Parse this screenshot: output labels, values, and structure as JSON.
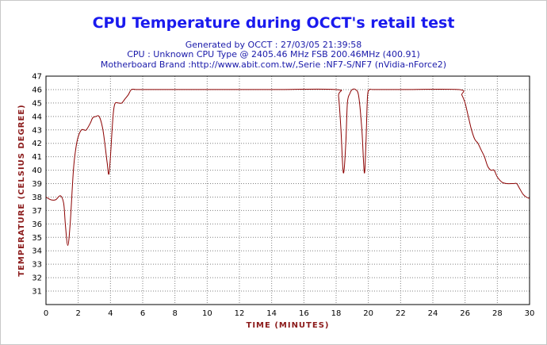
{
  "chart_data": {
    "type": "line",
    "title": "CPU Temperature during OCCT's retail test",
    "subtitles": [
      "Generated by OCCT : 27/03/05 21:39:58",
      "CPU : Unknown CPU Type @ 2405.46 MHz FSB 200.46MHz (400.91)",
      "Motherboard Brand :http://www.abit.com.tw/,Serie :NF7-S/NF7 (nVidia-nForce2)"
    ],
    "xlabel": "TIME (MINUTES)",
    "ylabel": "TEMPERATURE (CELSIUS DEGREE)",
    "xlim": [
      0,
      30
    ],
    "ylim": [
      30,
      47
    ],
    "xticks": [
      0,
      2,
      4,
      6,
      8,
      10,
      12,
      14,
      16,
      18,
      20,
      22,
      24,
      26,
      28,
      30
    ],
    "yticks": [
      31,
      32,
      33,
      34,
      35,
      36,
      37,
      38,
      39,
      40,
      41,
      42,
      43,
      44,
      45,
      46,
      47
    ],
    "grid": true,
    "line_color": "#8b0000",
    "series": [
      {
        "x": [
          0,
          0.3,
          0.6,
          0.9,
          1.1,
          1.2,
          1.35,
          1.5,
          1.7,
          1.85,
          2.0,
          2.2,
          2.35,
          2.5,
          2.75,
          2.9,
          3.1,
          3.3,
          3.5,
          3.65,
          3.8,
          3.9,
          4.0,
          4.1,
          4.2,
          4.3,
          4.5,
          4.7,
          4.9,
          5.1,
          5.3,
          5.6,
          6.0,
          10.0,
          14.0,
          18.0,
          18.15,
          18.3,
          18.45,
          18.6,
          18.7,
          18.85,
          19.0,
          19.2,
          19.4,
          19.6,
          19.75,
          19.85,
          19.95,
          20.1,
          20.3,
          22.0,
          25.6,
          25.8,
          26.0,
          26.2,
          26.4,
          26.6,
          26.8,
          27.0,
          27.2,
          27.4,
          27.6,
          27.8,
          28.0,
          28.3,
          28.6,
          29.0,
          29.2,
          29.4,
          29.6,
          29.8,
          30.0
        ],
        "y": [
          38,
          37.8,
          37.8,
          38.1,
          37.5,
          36,
          34.4,
          36,
          40,
          41.6,
          42.5,
          43,
          43,
          43,
          43.5,
          43.9,
          44,
          44,
          43.2,
          42,
          40.5,
          39.7,
          41,
          43,
          44.5,
          45,
          45,
          45,
          45.3,
          45.6,
          46,
          46,
          46,
          46,
          46,
          46,
          45.5,
          43,
          39.8,
          42,
          45,
          45.7,
          46,
          46,
          45.5,
          43,
          39.8,
          42,
          45.5,
          46,
          46,
          46,
          46,
          45.6,
          45,
          44,
          43,
          42.3,
          42,
          41.5,
          41,
          40.3,
          40,
          40,
          39.5,
          39.1,
          39,
          39,
          39,
          38.6,
          38.2,
          38,
          37.9
        ]
      }
    ]
  }
}
